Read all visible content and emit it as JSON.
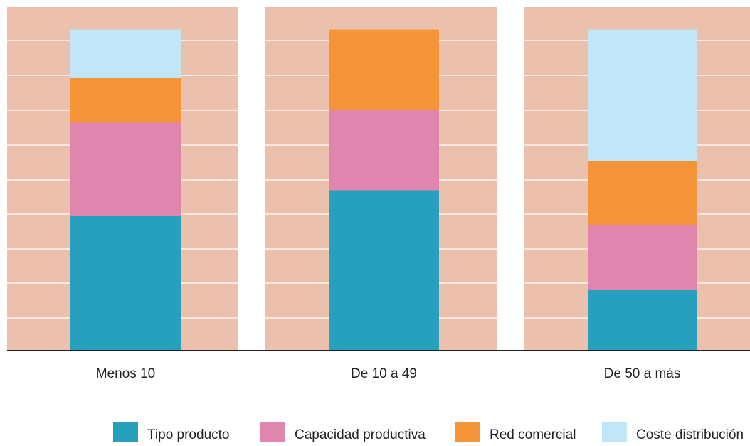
{
  "chart_data": {
    "type": "bar",
    "stacked": true,
    "categories": [
      "Menos 10",
      "De 10 a 49",
      "De 50 a más"
    ],
    "series": [
      {
        "name": "Tipo producto",
        "color": "#27A0BE",
        "values": [
          42,
          50,
          19
        ]
      },
      {
        "name": "Capacidad productiva",
        "color": "#E086AE",
        "values": [
          29,
          25,
          20
        ]
      },
      {
        "name": "Red comercial",
        "color": "#F59439",
        "values": [
          14,
          25,
          20
        ]
      },
      {
        "name": "Coste distribución",
        "color": "#C0E6F7",
        "values": [
          15,
          0,
          41
        ]
      }
    ],
    "ylim": [
      0,
      107
    ],
    "grid": true,
    "legend_position": "bottom",
    "colors": {
      "panel": "#EBC0AD",
      "gridline": "#FFFFFF",
      "axis": "#222222",
      "text": "#222222"
    }
  }
}
